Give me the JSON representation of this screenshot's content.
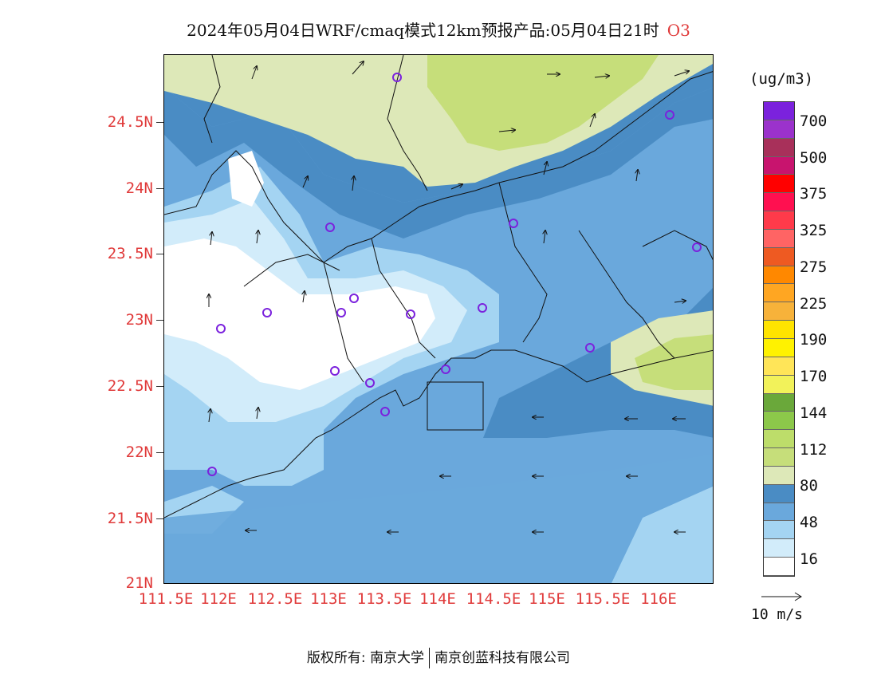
{
  "title": {
    "main": "2024年05月04日WRF/cmaq模式12km预报产品:05月04日21时",
    "species": "O3"
  },
  "axes": {
    "lat_labels": [
      "24.5N",
      "24N",
      "23.5N",
      "23N",
      "22.5N",
      "22N",
      "21.5N",
      "21N"
    ],
    "lon_labels": [
      "111.5E",
      "112E",
      "112.5E",
      "113E",
      "113.5E",
      "114E",
      "114.5E",
      "115E",
      "115.5E",
      "116E"
    ],
    "lat_range": [
      21.0,
      25.0
    ],
    "lon_range": [
      111.5,
      116.7
    ]
  },
  "colorbar": {
    "unit": "(ug/m3)",
    "labels": [
      "700",
      "500",
      "375",
      "325",
      "275",
      "225",
      "190",
      "170",
      "144",
      "112",
      "80",
      "48",
      "16"
    ],
    "colors": [
      "#7b22dd",
      "#9b32cc",
      "#a8305a",
      "#c8146e",
      "#ff0000",
      "#ff1050",
      "#ff3a4a",
      "#ff6464",
      "#ee5a22",
      "#ff8800",
      "#ffa622",
      "#f7b23a",
      "#ffe400",
      "#fff200",
      "#ffe558",
      "#f2f25a",
      "#6aa83a",
      "#8cc84a",
      "#bddd6a",
      "#c6de7a",
      "#dde8b8",
      "#4a8cc4",
      "#6aa8dc",
      "#a4d4f2",
      "#d2ecfa",
      "#ffffff"
    ]
  },
  "wind_reference": {
    "label": "10 m/s"
  },
  "stations": {
    "count": 17,
    "color": "#7b22dd"
  },
  "map_colors": {
    "ozone_80_112": "#dde8b8",
    "ozone_112_144": "#c6de7a",
    "ozone_64_80": "#4a8cc4",
    "ozone_48_64": "#6aa8dc",
    "ozone_32_48": "#a4d4f2",
    "ozone_16_32": "#d2ecfa",
    "ozone_0_16": "#ffffff"
  },
  "footer": {
    "left": "版权所有: 南京大学",
    "right": "南京创蓝科技有限公司"
  }
}
